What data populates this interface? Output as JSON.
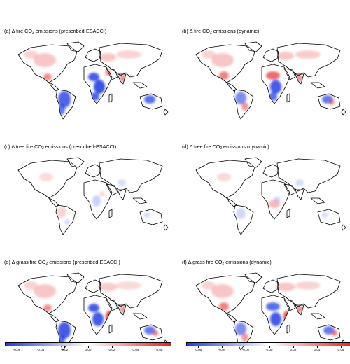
{
  "panels": [
    {
      "id": "a",
      "prefix": "(a) Δ fire CO",
      "sub": "2",
      "suffix": " emissions (prescribed-ESACCI)",
      "variant": "a"
    },
    {
      "id": "b",
      "prefix": "(b) Δ fire CO",
      "sub": "2",
      "suffix": " emissions (dynamic)",
      "variant": "b"
    },
    {
      "id": "c",
      "prefix": "(c) Δ tree fire CO",
      "sub": "2",
      "suffix": " emissions (prescribed-ESACCI)",
      "variant": "c"
    },
    {
      "id": "d",
      "prefix": "(d) Δ tree fire CO",
      "sub": "2",
      "suffix": " emissions (dynamic)",
      "variant": "d"
    },
    {
      "id": "e",
      "prefix": "(e) Δ grass fire CO",
      "sub": "2",
      "suffix": " emissions (prescribed-ESACCI)",
      "variant": "e"
    },
    {
      "id": "f",
      "prefix": "(f) Δ grass fire CO",
      "sub": "2",
      "suffix": " emissions (dynamic)",
      "variant": "f"
    }
  ],
  "colorbar": {
    "min": -0.07,
    "max": 0.07,
    "tick_values": [
      -0.06,
      -0.04,
      -0.02,
      0.0,
      0.02,
      0.04,
      0.06
    ],
    "tick_labels": [
      "-0.06",
      "-0.04",
      "-0.02",
      "0.00",
      "0.02",
      "0.04",
      "0.06"
    ],
    "colors": {
      "low": "#1f3ee0",
      "mid": "#ffffff",
      "high": "#e82020"
    }
  }
}
